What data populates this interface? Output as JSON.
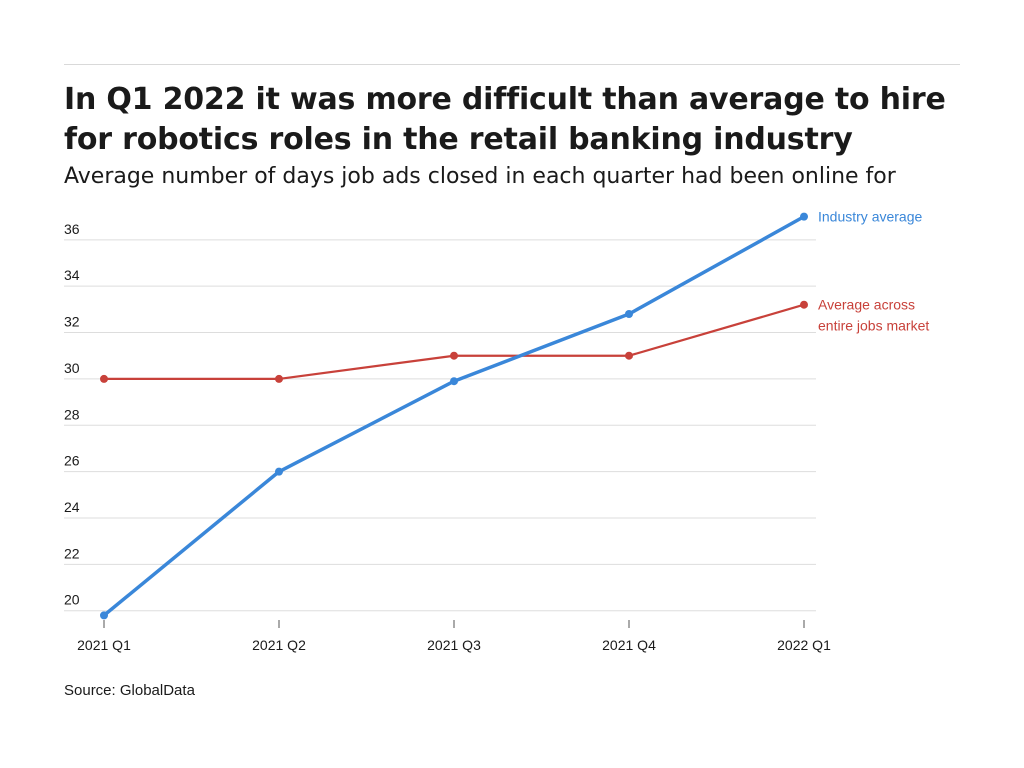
{
  "header": {
    "title": "In Q1 2022 it was more difficult than average to hire for robotics roles in the retail banking industry",
    "subtitle": "Average number of days job ads closed in each quarter had been online for"
  },
  "footer": {
    "source": "Source: GlobalData"
  },
  "chart_data": {
    "type": "line",
    "categories": [
      "2021 Q1",
      "2021 Q2",
      "2021 Q3",
      "2021 Q4",
      "2022 Q1"
    ],
    "series": [
      {
        "name": "Industry average",
        "label_lines": [
          "Industry average"
        ],
        "color": "#3a87d9",
        "values": [
          19.8,
          26.0,
          29.9,
          32.8,
          37.0
        ]
      },
      {
        "name": "Average across entire jobs market",
        "label_lines": [
          "Average across",
          "entire jobs market"
        ],
        "color": "#c8413a",
        "values": [
          30.0,
          30.0,
          31.0,
          31.0,
          33.2
        ]
      }
    ],
    "yticks": [
      20,
      22,
      24,
      26,
      28,
      30,
      32,
      34,
      36
    ],
    "ylim": [
      19.6,
      37.2
    ],
    "grid": true,
    "legend": "direct labels at line ends",
    "xlabel": "",
    "ylabel": ""
  }
}
